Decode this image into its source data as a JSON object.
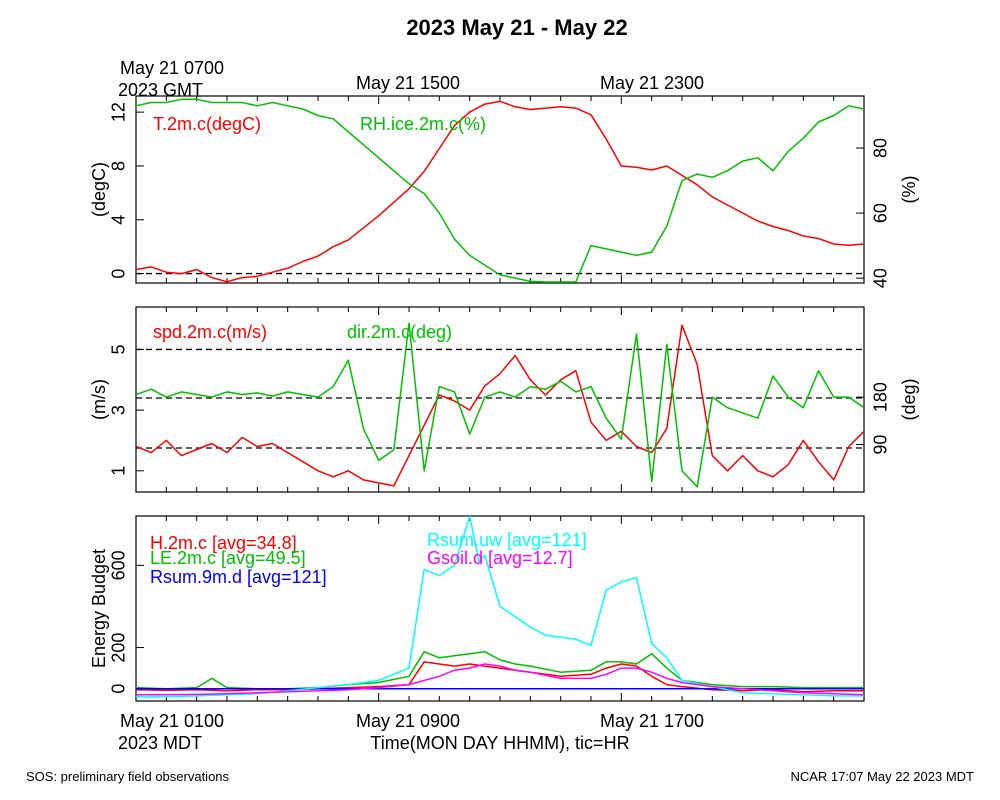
{
  "title": "2023 May 21 - May 22",
  "top_axis": {
    "first_label_line1": "May 21 0700",
    "first_label_line2": "2023 GMT",
    "label_2": "May 21 1500",
    "label_3": "May 21 2300"
  },
  "bottom_axis": {
    "first_label_line1": "May 21 0100",
    "first_label_line2": "2023 MDT",
    "label_2": "May 21 0900",
    "label_3": "May 21 1700",
    "xlabel": "Time(MON DAY HHMM), tic=HR"
  },
  "footer": {
    "left": "SOS: preliminary field observations",
    "right": "NCAR 17:07 May 22 2023 MDT"
  },
  "colors": {
    "red": "#ff0000",
    "green": "#00c000",
    "blue": "#0000ff",
    "cyan": "#00ffff",
    "magenta": "#ff00ff"
  },
  "chart_data": [
    {
      "type": "line",
      "ylabel": "(degC)",
      "ylabel_right": "(%)",
      "ylim": [
        -0.7,
        13.2
      ],
      "ylim_right": [
        38.5,
        96
      ],
      "yticks": [
        "0",
        "4",
        "8",
        "12"
      ],
      "yticks_right": [
        "40",
        "60",
        "80"
      ],
      "hlines": [
        0
      ],
      "series": [
        {
          "name": "T.2m.c(degC)",
          "axis": "left",
          "color": "#ff0000",
          "x": [
            0,
            0.5,
            1,
            1.5,
            2,
            2.5,
            3,
            3.5,
            4,
            4.5,
            5,
            5.5,
            6,
            6.5,
            7,
            7.5,
            8,
            8.5,
            9,
            9.5,
            10,
            10.5,
            11,
            11.5,
            12,
            12.5,
            13,
            13.5,
            14,
            14.5,
            15,
            15.5,
            16,
            16.5,
            17,
            17.5,
            18,
            18.5,
            19,
            19.5,
            20,
            20.5,
            21,
            21.5,
            22,
            22.5,
            23,
            23.5,
            24
          ],
          "y": [
            0.3,
            0.5,
            0.1,
            0.0,
            0.3,
            -0.3,
            -0.6,
            -0.3,
            -0.2,
            0.1,
            0.4,
            0.9,
            1.3,
            2.0,
            2.5,
            3.4,
            4.3,
            5.3,
            6.3,
            7.6,
            9.3,
            11.0,
            12.0,
            12.6,
            12.8,
            12.4,
            12.2,
            12.3,
            12.4,
            12.3,
            11.8,
            10.0,
            8.0,
            7.9,
            7.7,
            8.0,
            7.3,
            6.6,
            5.7,
            5.1,
            4.5,
            3.9,
            3.5,
            3.2,
            2.8,
            2.6,
            2.2,
            2.1,
            2.2
          ]
        },
        {
          "name": "RH.ice.2m.c(%)",
          "axis": "right",
          "color": "#00c000",
          "x": [
            0,
            0.5,
            1,
            1.5,
            2,
            2.5,
            3,
            3.5,
            4,
            4.5,
            5,
            5.5,
            6,
            6.5,
            7,
            7.5,
            8,
            8.5,
            9,
            9.5,
            10,
            10.5,
            11,
            11.5,
            12,
            12.5,
            13,
            13.5,
            14,
            14.5,
            15,
            15.5,
            16,
            16.5,
            17,
            17.5,
            18,
            18.5,
            19,
            19.5,
            20,
            20.5,
            21,
            21.5,
            22,
            22.5,
            23,
            23.5,
            24
          ],
          "y": [
            93,
            94,
            94,
            95,
            95,
            94,
            94,
            94,
            93,
            94,
            93,
            92,
            90,
            89,
            85,
            81,
            77,
            73,
            69,
            66,
            60,
            52,
            47,
            44,
            41,
            40,
            39,
            38.8,
            38.8,
            38.8,
            50,
            49,
            48,
            47,
            48,
            56,
            70,
            72,
            71,
            73,
            76,
            77,
            73,
            79,
            83,
            88,
            90,
            93,
            92
          ]
        }
      ]
    },
    {
      "type": "line",
      "ylabel": "(m/s)",
      "ylabel_right": "(deg)",
      "ylim": [
        0.3,
        6.4
      ],
      "ylim_right": [
        0,
        351
      ],
      "yticks": [
        "1",
        "3",
        "5"
      ],
      "yticks_right": [
        "90",
        "180"
      ],
      "hlines": [
        1.75,
        3.4,
        5.0
      ],
      "series": [
        {
          "name": "spd.2m.c(m/s)",
          "axis": "left",
          "color": "#ff0000",
          "x": [
            0,
            0.5,
            1,
            1.5,
            2,
            2.5,
            3,
            3.5,
            4,
            4.5,
            5,
            5.5,
            6,
            6.5,
            7,
            7.5,
            8,
            8.5,
            9,
            9.5,
            10,
            10.5,
            11,
            11.5,
            12,
            12.5,
            13,
            13.5,
            14,
            14.5,
            15,
            15.5,
            16,
            16.5,
            17,
            17.5,
            18,
            18.5,
            19,
            19.5,
            20,
            20.5,
            21,
            21.5,
            22,
            22.5,
            23,
            23.5,
            24
          ],
          "y": [
            1.8,
            1.6,
            2.0,
            1.5,
            1.7,
            1.9,
            1.6,
            2.1,
            1.8,
            1.9,
            1.6,
            1.3,
            1.0,
            0.8,
            1.0,
            0.7,
            0.6,
            0.5,
            1.5,
            2.5,
            3.5,
            3.3,
            3.0,
            3.8,
            4.2,
            4.8,
            4.0,
            3.5,
            4.0,
            4.3,
            2.6,
            2.0,
            2.3,
            1.8,
            1.6,
            2.4,
            5.8,
            4.5,
            1.5,
            1.0,
            1.5,
            1.0,
            0.8,
            1.2,
            2.0,
            1.3,
            0.7,
            1.8,
            2.3
          ]
        },
        {
          "name": "dir.2m.c(deg)",
          "axis": "right",
          "color": "#00c000",
          "x": [
            0,
            0.5,
            1,
            1.5,
            2,
            2.5,
            3,
            3.5,
            4,
            4.5,
            5,
            5.5,
            6,
            6.5,
            7,
            7.5,
            8,
            8.5,
            9,
            9.5,
            10,
            10.5,
            11,
            11.5,
            12,
            12.5,
            13,
            13.5,
            14,
            14.5,
            15,
            15.5,
            16,
            16.5,
            17,
            17.5,
            18,
            18.5,
            19,
            19.5,
            20,
            20.5,
            21,
            21.5,
            22,
            22.5,
            23,
            23.5,
            24
          ],
          "y": [
            185,
            195,
            180,
            190,
            185,
            180,
            190,
            185,
            188,
            182,
            190,
            185,
            180,
            200,
            250,
            120,
            60,
            80,
            320,
            40,
            200,
            190,
            110,
            180,
            190,
            180,
            200,
            195,
            210,
            190,
            200,
            140,
            100,
            300,
            20,
            280,
            40,
            10,
            180,
            160,
            150,
            140,
            220,
            180,
            160,
            230,
            180,
            180,
            160
          ]
        }
      ]
    },
    {
      "type": "line",
      "ylabel": "Energy Budget",
      "ylim": [
        -60,
        840
      ],
      "yticks": [
        "0",
        "200",
        "600"
      ],
      "hlines": [
        0
      ],
      "series": [
        {
          "name": "H.2m.c [avg=34.8]",
          "color": "#ff0000",
          "x": [
            0,
            1,
            2,
            3,
            4,
            5,
            6,
            7,
            8,
            9,
            9.5,
            10,
            10.5,
            11,
            11.5,
            12,
            12.5,
            13,
            14,
            15,
            15.5,
            16,
            16.5,
            17,
            17.5,
            18,
            19,
            20,
            21,
            22,
            23,
            24
          ],
          "y": [
            -5,
            -8,
            -5,
            -10,
            -5,
            -5,
            0,
            5,
            10,
            20,
            130,
            120,
            110,
            120,
            110,
            100,
            90,
            80,
            60,
            70,
            100,
            120,
            110,
            60,
            20,
            10,
            -5,
            -10,
            -5,
            -15,
            -10,
            -10
          ]
        },
        {
          "name": "LE.2m.c [avg=49.5]",
          "color": "#00c000",
          "x": [
            0,
            1,
            2,
            2.5,
            3,
            4,
            5,
            6,
            7,
            8,
            9,
            9.5,
            10,
            10.5,
            11,
            11.5,
            12,
            12.5,
            13,
            14,
            15,
            15.5,
            16,
            16.5,
            17,
            17.5,
            18,
            19,
            20,
            21,
            22,
            23,
            24
          ],
          "y": [
            5,
            0,
            5,
            50,
            5,
            0,
            0,
            5,
            20,
            30,
            60,
            180,
            150,
            160,
            170,
            180,
            140,
            120,
            110,
            80,
            90,
            130,
            130,
            120,
            170,
            100,
            40,
            20,
            10,
            10,
            5,
            5,
            5
          ]
        },
        {
          "name": "Rsum.9m.d [avg=121]",
          "color": "#0000ff",
          "x": [
            0,
            24
          ],
          "y": [
            0,
            0
          ]
        },
        {
          "name": "Rsum.uw [avg=121]",
          "color": "#00ffff",
          "x": [
            0,
            1,
            2,
            3,
            4,
            5,
            6,
            7,
            8,
            9,
            9.5,
            10,
            10.5,
            11,
            11.3,
            11.5,
            12,
            12.5,
            13,
            13.5,
            14,
            14.5,
            15,
            15.5,
            16,
            16.5,
            17,
            17.5,
            18,
            19,
            20,
            21,
            22,
            23,
            24
          ],
          "y": [
            -40,
            -40,
            -35,
            -30,
            -25,
            -10,
            5,
            20,
            40,
            100,
            580,
            550,
            600,
            840,
            620,
            650,
            400,
            350,
            300,
            260,
            250,
            240,
            210,
            480,
            520,
            540,
            220,
            150,
            40,
            10,
            -20,
            -25,
            -30,
            -35,
            -35
          ]
        },
        {
          "name": "Gsoil.d [avg=12.7]",
          "color": "#ff00ff",
          "x": [
            0,
            1,
            2,
            3,
            4,
            5,
            6,
            7,
            8,
            9,
            10,
            10.5,
            11,
            11.5,
            12,
            12.5,
            13,
            14,
            15,
            15.5,
            16,
            16.5,
            17,
            17.5,
            18,
            19,
            20,
            21,
            22,
            23,
            24
          ],
          "y": [
            -30,
            -30,
            -28,
            -25,
            -20,
            -15,
            -10,
            -5,
            5,
            20,
            60,
            90,
            100,
            120,
            110,
            90,
            80,
            50,
            50,
            70,
            100,
            100,
            80,
            50,
            30,
            10,
            0,
            -10,
            -20,
            -25,
            -30
          ]
        }
      ]
    }
  ]
}
